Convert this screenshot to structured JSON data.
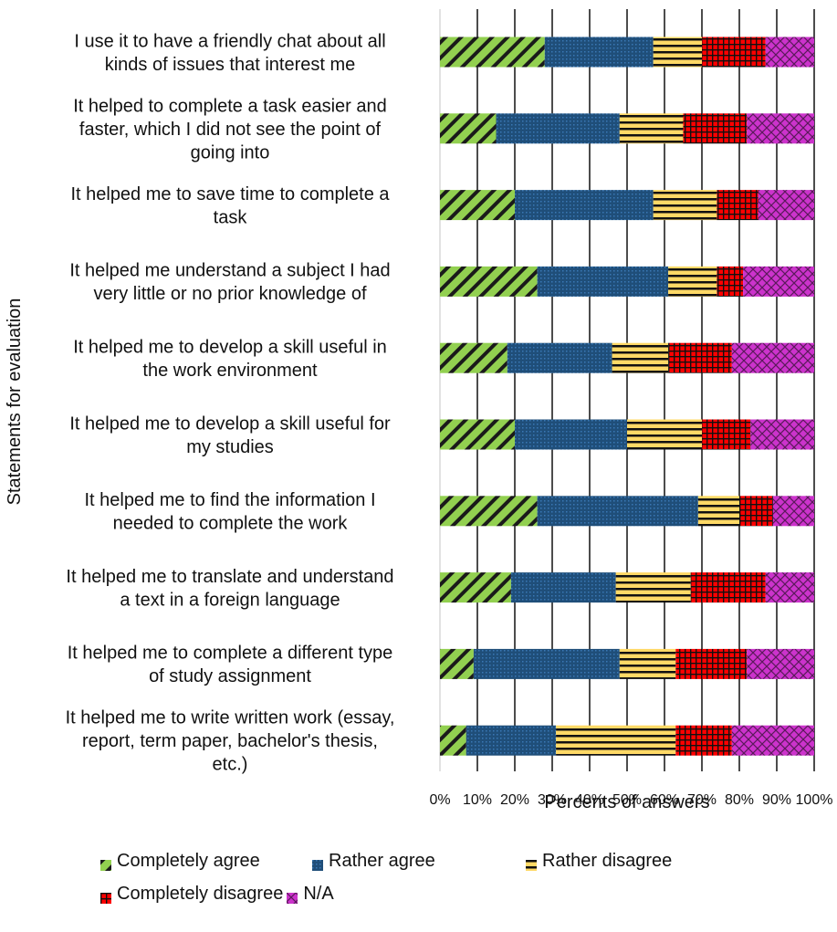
{
  "chart_data": {
    "type": "bar",
    "orientation": "horizontal",
    "stacked": "percent",
    "ylabel": "Statements for evaluation",
    "xlabel": "Percents of answers",
    "xlim": [
      0,
      100
    ],
    "xticks": [
      "0%",
      "10%",
      "20%",
      "30%",
      "40%",
      "50%",
      "60%",
      "70%",
      "80%",
      "90%",
      "100%"
    ],
    "grid": "vertical",
    "legend_position": "bottom",
    "categories": [
      [
        "I use it to have a friendly chat about all",
        "kinds of issues that interest me"
      ],
      [
        "It helped to complete a task easier and",
        "faster, which I did not see the point of",
        "going into"
      ],
      [
        "It helped me to save time to complete a",
        "task"
      ],
      [
        "It helped me understand a subject I had",
        "very little or no prior knowledge of"
      ],
      [
        "It helped me to develop a skill useful in",
        "the work environment"
      ],
      [
        "It helped me to develop a skill useful for",
        "my studies"
      ],
      [
        "It helped me to find the information I",
        "needed to complete the work"
      ],
      [
        "It helped me to translate and understand",
        "a text in a foreign language"
      ],
      [
        "It helped me to complete a different type",
        "of study assignment"
      ],
      [
        "It helped me to write written work (essay,",
        "report, term paper, bachelor's thesis,",
        "etc.)"
      ]
    ],
    "series": [
      {
        "name": "Completely agree",
        "color": "#92d050",
        "pattern": "diagonal-stripes",
        "values": [
          28,
          15,
          20,
          26,
          18,
          20,
          26,
          19,
          9,
          7
        ]
      },
      {
        "name": "Rather agree",
        "color": "#1f4e79",
        "pattern": "dots",
        "values": [
          29,
          33,
          37,
          35,
          28,
          30,
          43,
          28,
          39,
          24
        ]
      },
      {
        "name": "Rather disagree",
        "color": "#ffd966",
        "pattern": "horizontal-stripes",
        "values": [
          13,
          17,
          17,
          13,
          15,
          20,
          11,
          20,
          15,
          32
        ]
      },
      {
        "name": "Completely disagree",
        "color": "#ff0000",
        "pattern": "grid",
        "values": [
          17,
          17,
          11,
          7,
          17,
          13,
          9,
          20,
          19,
          15
        ]
      },
      {
        "name": "N/A",
        "color": "#cc33cc",
        "pattern": "crosshatch",
        "values": [
          13,
          18,
          15,
          19,
          22,
          17,
          11,
          13,
          18,
          22
        ]
      }
    ]
  }
}
